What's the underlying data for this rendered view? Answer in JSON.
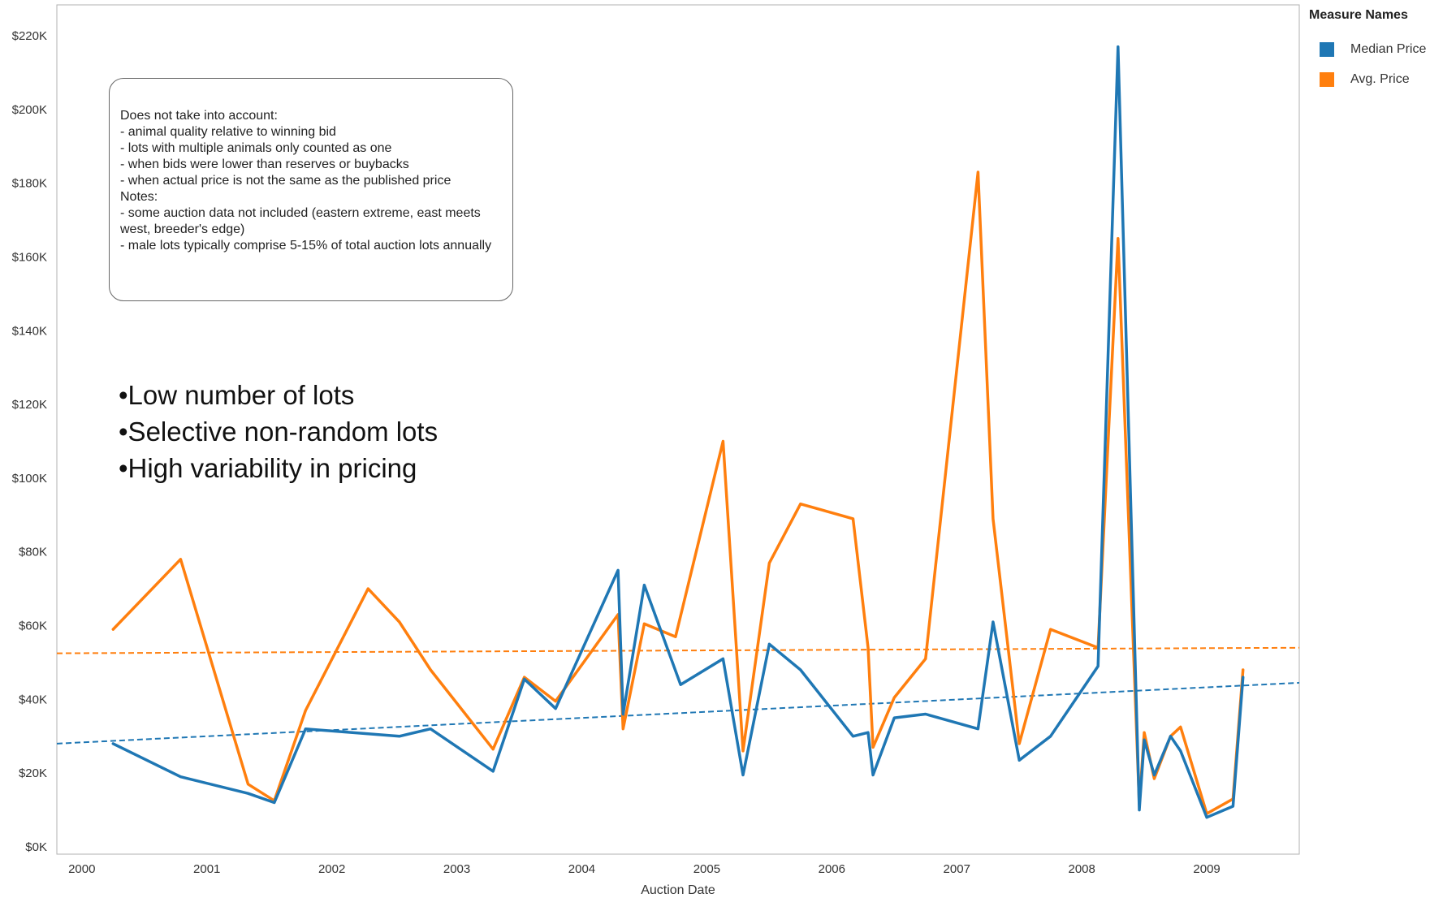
{
  "chart_data": {
    "type": "line",
    "xlabel": "Auction Date",
    "ylabel": "",
    "xlim": [
      1999.8,
      2009.74
    ],
    "ylim": [
      0,
      220000
    ],
    "x_ticks": [
      "2000",
      "2001",
      "2002",
      "2003",
      "2004",
      "2005",
      "2006",
      "2007",
      "2008",
      "2009"
    ],
    "y_ticks": [
      "$0K",
      "$20K",
      "$40K",
      "$60K",
      "$80K",
      "$100K",
      "$120K",
      "$140K",
      "$160K",
      "$180K",
      "$200K",
      "$220K"
    ],
    "grid": false,
    "legend_title": "Measure Names",
    "legend_position": "top-right",
    "series": [
      {
        "name": "Median Price",
        "color": "#1F77B4",
        "trendline": {
          "start": [
            1999.8,
            28000
          ],
          "end": [
            2009.74,
            44500
          ]
        },
        "x": [
          2000.25,
          2000.79,
          2001.33,
          2001.54,
          2001.79,
          2002.54,
          2002.79,
          2003.29,
          2003.54,
          2003.79,
          2004.29,
          2004.33,
          2004.5,
          2004.79,
          2005.13,
          2005.29,
          2005.5,
          2005.75,
          2006.17,
          2006.29,
          2006.33,
          2006.5,
          2006.75,
          2007.17,
          2007.29,
          2007.5,
          2007.75,
          2008.13,
          2008.29,
          2008.46,
          2008.5,
          2008.58,
          2008.71,
          2008.79,
          2009.0,
          2009.21,
          2009.29
        ],
        "values": [
          28000,
          19000,
          14500,
          12000,
          32000,
          30000,
          32000,
          20500,
          45500,
          37500,
          75000,
          36000,
          71000,
          44000,
          51000,
          19500,
          55000,
          48000,
          30000,
          31000,
          19500,
          35000,
          36000,
          32000,
          61000,
          23500,
          30000,
          49000,
          217000,
          10000,
          29000,
          19500,
          30000,
          26000,
          8000,
          11000,
          46000
        ]
      },
      {
        "name": "Avg. Price",
        "color": "#FF7F0E",
        "trendline": {
          "start": [
            1999.8,
            52500
          ],
          "end": [
            2009.74,
            54000
          ]
        },
        "x": [
          2000.25,
          2000.79,
          2001.33,
          2001.54,
          2001.79,
          2002.29,
          2002.54,
          2002.79,
          2003.29,
          2003.54,
          2003.79,
          2004.29,
          2004.33,
          2004.5,
          2004.75,
          2005.13,
          2005.29,
          2005.5,
          2005.75,
          2006.17,
          2006.29,
          2006.33,
          2006.5,
          2006.75,
          2007.17,
          2007.29,
          2007.5,
          2007.75,
          2008.13,
          2008.29,
          2008.46,
          2008.5,
          2008.58,
          2008.71,
          2008.79,
          2009.0,
          2009.21,
          2009.29
        ],
        "values": [
          59000,
          78000,
          17000,
          12500,
          37000,
          70000,
          61000,
          48000,
          26500,
          46000,
          39500,
          63000,
          32000,
          60500,
          57000,
          110000,
          26000,
          77000,
          93000,
          89000,
          54000,
          27000,
          40500,
          51000,
          183000,
          89000,
          28000,
          59000,
          54000,
          165000,
          11500,
          31000,
          18500,
          30000,
          32500,
          9000,
          13000,
          48000
        ]
      }
    ]
  },
  "annotation_box": {
    "lines": [
      "Does not take into account:",
      "- animal quality relative to winning bid",
      "- lots with multiple animals only counted as one",
      "- when bids were lower than reserves or buybacks",
      "- when actual price is not the same as the published price",
      "Notes:",
      "- some auction data not included (eastern extreme, east meets west, breeder's edge)",
      "- male lots typically comprise 5-15% of total auction lots annually"
    ]
  },
  "bullets": [
    "•Low number of lots",
    "•Selective non-random lots",
    "•High variability in pricing"
  ]
}
